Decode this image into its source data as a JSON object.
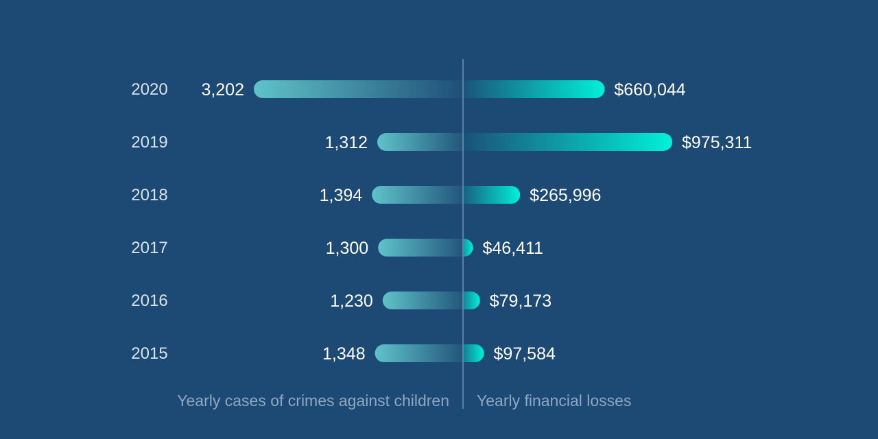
{
  "colors": {
    "background": "#1c4a74",
    "divider": "#8aa3bd",
    "left_bar_start": "#5fc3c8",
    "right_bar_end": "#00f0d8",
    "year_text": "#d9e3ee",
    "value_text": "#ffffff",
    "caption_text": "#8fa7c0"
  },
  "chart_data": {
    "type": "bar",
    "layout": "diverging-horizontal",
    "categories": [
      "2020",
      "2019",
      "2018",
      "2017",
      "2016",
      "2015"
    ],
    "series": [
      {
        "name": "Yearly cases of crimes against children",
        "values": [
          3202,
          1312,
          1394,
          1300,
          1230,
          1348
        ],
        "labels": [
          "3,202",
          "1,312",
          "1,394",
          "1,300",
          "1,230",
          "1,348"
        ],
        "side": "left"
      },
      {
        "name": "Yearly financial losses",
        "values": [
          660044,
          975311,
          265996,
          46411,
          79173,
          97584
        ],
        "labels": [
          "$660,044",
          "$975,311",
          "$265,996",
          "$46,411",
          "$79,173",
          "$97,584"
        ],
        "side": "right"
      }
    ],
    "left_caption": "Yearly cases of crimes against children",
    "right_caption": "Yearly financial losses",
    "grid": false,
    "legend": "bottom"
  }
}
